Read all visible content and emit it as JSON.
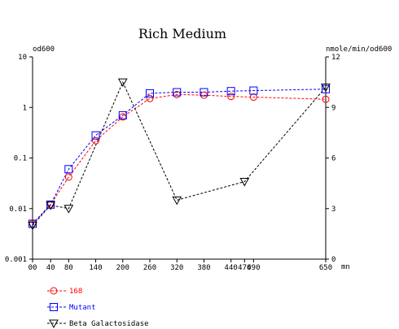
{
  "chart_data": {
    "type": "line",
    "title": "Rich Medium",
    "y_left_label": "od600",
    "y_right_label": "nmole/min/od600",
    "x_unit": "mn",
    "x_ticks": [
      0,
      40,
      80,
      140,
      200,
      260,
      320,
      380,
      440,
      470,
      490,
      650
    ],
    "x_tick_labels": [
      "00",
      "40",
      "80",
      "140",
      "200",
      "260",
      "320",
      "380",
      "440",
      "470",
      "490",
      "650"
    ],
    "xlim": [
      0,
      650
    ],
    "y_left_scale": "log",
    "y_left_ticks": [
      0.001,
      0.01,
      0.1,
      1,
      10
    ],
    "y_left_tick_labels": [
      "0.001",
      "0.01",
      "0.1",
      "1",
      "10"
    ],
    "y_left_lim": [
      0.001,
      10
    ],
    "y_right_ticks": [
      0,
      3,
      6,
      9,
      12
    ],
    "y_right_tick_labels": [
      "0",
      "3",
      "6",
      "9",
      "12"
    ],
    "y_right_lim": [
      0,
      12
    ],
    "grid": false,
    "legend_placement": "bottom-left",
    "series": [
      {
        "name": "168",
        "axis": "left",
        "color": "#ff0000",
        "marker": "circle",
        "x": [
          0,
          40,
          80,
          140,
          200,
          260,
          320,
          380,
          440,
          490,
          650
        ],
        "values": [
          0.005,
          0.012,
          0.042,
          0.22,
          0.65,
          1.5,
          1.8,
          1.75,
          1.65,
          1.6,
          1.45
        ]
      },
      {
        "name": "Mutant",
        "axis": "left",
        "color": "#0000ff",
        "marker": "square",
        "x": [
          0,
          40,
          80,
          140,
          200,
          260,
          320,
          380,
          440,
          490,
          650
        ],
        "values": [
          0.005,
          0.012,
          0.06,
          0.28,
          0.7,
          1.9,
          2.0,
          2.0,
          2.1,
          2.15,
          2.3
        ]
      },
      {
        "name": "Beta Galactosidase",
        "axis": "right",
        "color": "#000000",
        "marker": "triangle-down",
        "x": [
          0,
          40,
          80,
          200,
          320,
          470,
          650
        ],
        "values": [
          2.0,
          3.2,
          3.0,
          10.5,
          3.5,
          4.6,
          10.2
        ]
      }
    ]
  }
}
